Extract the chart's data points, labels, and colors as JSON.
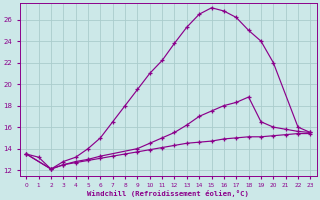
{
  "xlabel": "Windchill (Refroidissement éolien,°C)",
  "line_color": "#8b008b",
  "bg_color": "#cce8e8",
  "grid_color": "#aacccc",
  "ylim": [
    11.5,
    27.5
  ],
  "xlim": [
    -0.5,
    23.5
  ],
  "yticks": [
    12,
    14,
    16,
    18,
    20,
    22,
    24,
    26
  ],
  "xticks": [
    0,
    1,
    2,
    3,
    4,
    5,
    6,
    7,
    8,
    9,
    10,
    11,
    12,
    13,
    14,
    15,
    16,
    17,
    18,
    19,
    20,
    21,
    22,
    23
  ],
  "line1_x": [
    0,
    1,
    2,
    3,
    4,
    5,
    6,
    7,
    8,
    9,
    10,
    11,
    12,
    13,
    14,
    15,
    16,
    17,
    18,
    19,
    20,
    21,
    22,
    23
  ],
  "line1_y": [
    13.5,
    13.2,
    12.1,
    12.5,
    12.7,
    12.9,
    13.1,
    13.3,
    13.5,
    13.7,
    13.9,
    14.1,
    14.3,
    14.5,
    14.6,
    14.7,
    14.9,
    15.0,
    15.1,
    15.1,
    15.2,
    15.3,
    15.4,
    15.4
  ],
  "line2_x": [
    0,
    2,
    3,
    4,
    5,
    6,
    9,
    10,
    11,
    12,
    13,
    14,
    15,
    16,
    17,
    18,
    19,
    20,
    21,
    22,
    23
  ],
  "line2_y": [
    13.5,
    12.1,
    12.5,
    12.8,
    13.0,
    13.3,
    14.0,
    14.5,
    15.0,
    15.5,
    16.2,
    17.0,
    17.5,
    18.0,
    18.3,
    18.8,
    16.5,
    16.0,
    15.8,
    15.6,
    15.5
  ],
  "line3_x": [
    0,
    2,
    3,
    4,
    5,
    6,
    7,
    8,
    9,
    10,
    11,
    12,
    13,
    14,
    15,
    16,
    17,
    18,
    19,
    20,
    22,
    23
  ],
  "line3_y": [
    13.5,
    12.1,
    12.8,
    13.2,
    14.0,
    15.0,
    16.5,
    18.0,
    19.5,
    21.0,
    22.2,
    23.8,
    25.3,
    26.5,
    27.1,
    26.8,
    26.2,
    25.0,
    24.0,
    22.0,
    16.0,
    15.5
  ]
}
